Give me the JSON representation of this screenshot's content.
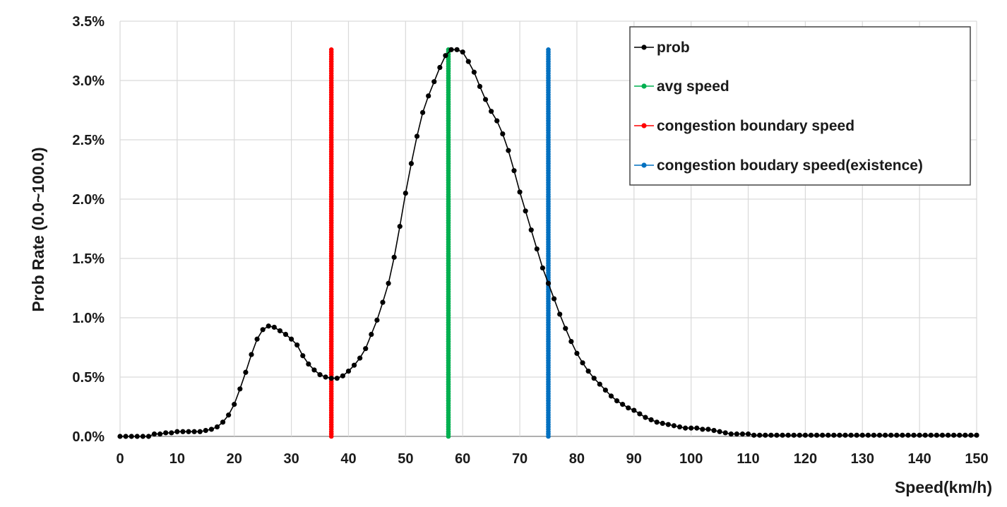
{
  "chart_data": {
    "type": "line",
    "xlabel": "Speed(km/h)",
    "ylabel": "Prob Rate (0.0~100.0)",
    "xlim": [
      0,
      150
    ],
    "ylim": [
      0,
      3.5
    ],
    "x_ticks": [
      "0",
      "10",
      "20",
      "30",
      "40",
      "50",
      "60",
      "70",
      "80",
      "90",
      "100",
      "110",
      "120",
      "130",
      "140",
      "150"
    ],
    "y_ticks": [
      "0.0%",
      "0.5%",
      "1.0%",
      "1.5%",
      "2.0%",
      "2.5%",
      "3.0%",
      "3.5%"
    ],
    "grid": true,
    "legend_position": "top-right",
    "series": [
      {
        "name": "prob",
        "color": "#000000",
        "x": [
          0,
          1,
          2,
          3,
          4,
          5,
          6,
          7,
          8,
          9,
          10,
          11,
          12,
          13,
          14,
          15,
          16,
          17,
          18,
          19,
          20,
          21,
          22,
          23,
          24,
          25,
          26,
          27,
          28,
          29,
          30,
          31,
          32,
          33,
          34,
          35,
          36,
          37,
          38,
          39,
          40,
          41,
          42,
          43,
          44,
          45,
          46,
          47,
          48,
          49,
          50,
          51,
          52,
          53,
          54,
          55,
          56,
          57,
          58,
          59,
          60,
          61,
          62,
          63,
          64,
          65,
          66,
          67,
          68,
          69,
          70,
          71,
          72,
          73,
          74,
          75,
          76,
          77,
          78,
          79,
          80,
          81,
          82,
          83,
          84,
          85,
          86,
          87,
          88,
          89,
          90,
          91,
          92,
          93,
          94,
          95,
          96,
          97,
          98,
          99,
          100,
          101,
          102,
          103,
          104,
          105,
          106,
          107,
          108,
          109,
          110,
          111,
          112,
          113,
          114,
          115,
          116,
          117,
          118,
          119,
          120,
          121,
          122,
          123,
          124,
          125,
          126,
          127,
          128,
          129,
          130,
          131,
          132,
          133,
          134,
          135,
          136,
          137,
          138,
          139,
          140,
          141,
          142,
          143,
          144,
          145,
          146,
          147,
          148,
          149,
          150
        ],
        "y": [
          0.0,
          0.0,
          0.0,
          0.0,
          0.0,
          0.0,
          0.02,
          0.02,
          0.03,
          0.03,
          0.04,
          0.04,
          0.04,
          0.04,
          0.04,
          0.05,
          0.06,
          0.08,
          0.12,
          0.18,
          0.27,
          0.4,
          0.54,
          0.69,
          0.82,
          0.9,
          0.93,
          0.92,
          0.89,
          0.86,
          0.82,
          0.77,
          0.68,
          0.61,
          0.56,
          0.52,
          0.5,
          0.49,
          0.49,
          0.51,
          0.55,
          0.6,
          0.66,
          0.74,
          0.86,
          0.98,
          1.13,
          1.29,
          1.51,
          1.77,
          2.05,
          2.3,
          2.53,
          2.73,
          2.87,
          2.99,
          3.11,
          3.21,
          3.26,
          3.26,
          3.24,
          3.16,
          3.07,
          2.95,
          2.84,
          2.74,
          2.66,
          2.55,
          2.41,
          2.24,
          2.06,
          1.9,
          1.74,
          1.58,
          1.42,
          1.29,
          1.16,
          1.03,
          0.91,
          0.8,
          0.7,
          0.62,
          0.55,
          0.49,
          0.44,
          0.39,
          0.34,
          0.3,
          0.27,
          0.24,
          0.22,
          0.19,
          0.16,
          0.14,
          0.12,
          0.11,
          0.1,
          0.09,
          0.08,
          0.07,
          0.07,
          0.07,
          0.06,
          0.06,
          0.05,
          0.04,
          0.03,
          0.02,
          0.02,
          0.02,
          0.02,
          0.01,
          0.01,
          0.01,
          0.01,
          0.01,
          0.01,
          0.01,
          0.01,
          0.01,
          0.01,
          0.01,
          0.01,
          0.01,
          0.01,
          0.01,
          0.01,
          0.01,
          0.01,
          0.01,
          0.01,
          0.01,
          0.01,
          0.01,
          0.01,
          0.01,
          0.01,
          0.01,
          0.01,
          0.01,
          0.01,
          0.01,
          0.01,
          0.01,
          0.01,
          0.01,
          0.01,
          0.01,
          0.01,
          0.01,
          0.01
        ]
      },
      {
        "name": "avg speed",
        "color": "#00b050",
        "vertical_at": 57.5,
        "y_range": [
          0,
          3.26
        ]
      },
      {
        "name": "congestion boundary speed",
        "color": "#ff0000",
        "vertical_at": 37,
        "y_range": [
          0,
          3.26
        ]
      },
      {
        "name": "congestion boudary speed(existence)",
        "color": "#0070c0",
        "vertical_at": 75,
        "y_range": [
          0,
          3.26
        ]
      }
    ]
  }
}
